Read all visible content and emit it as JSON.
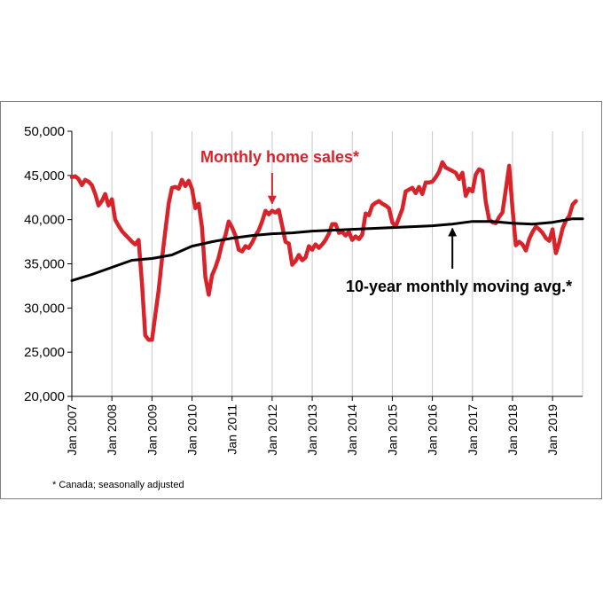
{
  "chart_data": {
    "type": "line",
    "xlabel": "",
    "ylabel": "",
    "ylim": [
      20000,
      50000
    ],
    "y_ticks": [
      20000,
      25000,
      30000,
      35000,
      40000,
      45000,
      50000
    ],
    "y_tick_labels": [
      "20,000",
      "25,000",
      "30,000",
      "35,000",
      "40,000",
      "45,000",
      "50,000"
    ],
    "x_range": [
      "2007-01",
      "2019-10"
    ],
    "x_tick_labels": [
      "Jan 2007",
      "Jan 2008",
      "Jan 2009",
      "Jan 2010",
      "Jan 2011",
      "Jan 2012",
      "Jan 2013",
      "Jan 2014",
      "Jan 2015",
      "Jan 2016",
      "Jan 2017",
      "Jan 2018",
      "Jan 2019"
    ],
    "grid": {
      "vertical": true,
      "horizontal": false
    },
    "series": [
      {
        "key": "sales",
        "color": "#d8232a",
        "points": [
          [
            "2007-01",
            44800
          ],
          [
            "2007-02",
            44900
          ],
          [
            "2007-03",
            44600
          ],
          [
            "2007-04",
            43900
          ],
          [
            "2007-05",
            44500
          ],
          [
            "2007-06",
            44300
          ],
          [
            "2007-07",
            43900
          ],
          [
            "2007-08",
            42900
          ],
          [
            "2007-09",
            41600
          ],
          [
            "2007-10",
            42100
          ],
          [
            "2007-11",
            42900
          ],
          [
            "2007-12",
            41600
          ],
          [
            "2008-01",
            42300
          ],
          [
            "2008-02",
            40000
          ],
          [
            "2008-03",
            39300
          ],
          [
            "2008-04",
            38700
          ],
          [
            "2008-05",
            38300
          ],
          [
            "2008-06",
            37900
          ],
          [
            "2008-07",
            37500
          ],
          [
            "2008-08",
            37200
          ],
          [
            "2008-09",
            37700
          ],
          [
            "2008-10",
            32800
          ],
          [
            "2008-11",
            26900
          ],
          [
            "2008-12",
            26400
          ],
          [
            "2009-01",
            26400
          ],
          [
            "2009-02",
            29200
          ],
          [
            "2009-03",
            32000
          ],
          [
            "2009-04",
            35500
          ],
          [
            "2009-05",
            38700
          ],
          [
            "2009-06",
            41800
          ],
          [
            "2009-07",
            43600
          ],
          [
            "2009-08",
            43700
          ],
          [
            "2009-09",
            43500
          ],
          [
            "2009-10",
            44500
          ],
          [
            "2009-11",
            43800
          ],
          [
            "2009-12",
            44400
          ],
          [
            "2010-01",
            43500
          ],
          [
            "2010-02",
            41300
          ],
          [
            "2010-03",
            41800
          ],
          [
            "2010-04",
            39100
          ],
          [
            "2010-05",
            33500
          ],
          [
            "2010-06",
            31500
          ],
          [
            "2010-07",
            33700
          ],
          [
            "2010-08",
            34600
          ],
          [
            "2010-09",
            35700
          ],
          [
            "2010-10",
            37300
          ],
          [
            "2010-11",
            38200
          ],
          [
            "2010-12",
            39800
          ],
          [
            "2011-01",
            39100
          ],
          [
            "2011-02",
            38200
          ],
          [
            "2011-03",
            36600
          ],
          [
            "2011-04",
            36400
          ],
          [
            "2011-05",
            37000
          ],
          [
            "2011-06",
            36800
          ],
          [
            "2011-07",
            37400
          ],
          [
            "2011-08",
            38200
          ],
          [
            "2011-09",
            38800
          ],
          [
            "2011-10",
            39800
          ],
          [
            "2011-11",
            41000
          ],
          [
            "2011-12",
            40600
          ],
          [
            "2012-01",
            41000
          ],
          [
            "2012-02",
            40800
          ],
          [
            "2012-03",
            41100
          ],
          [
            "2012-04",
            39300
          ],
          [
            "2012-05",
            37500
          ],
          [
            "2012-06",
            37300
          ],
          [
            "2012-07",
            34900
          ],
          [
            "2012-08",
            35300
          ],
          [
            "2012-09",
            36000
          ],
          [
            "2012-10",
            35400
          ],
          [
            "2012-11",
            35700
          ],
          [
            "2012-12",
            37000
          ],
          [
            "2013-01",
            36600
          ],
          [
            "2013-02",
            37200
          ],
          [
            "2013-03",
            36800
          ],
          [
            "2013-04",
            37200
          ],
          [
            "2013-05",
            37700
          ],
          [
            "2013-06",
            38400
          ],
          [
            "2013-07",
            39500
          ],
          [
            "2013-08",
            39500
          ],
          [
            "2013-09",
            38500
          ],
          [
            "2013-10",
            38600
          ],
          [
            "2013-11",
            38200
          ],
          [
            "2013-12",
            38600
          ],
          [
            "2014-01",
            37700
          ],
          [
            "2014-02",
            38100
          ],
          [
            "2014-03",
            37800
          ],
          [
            "2014-04",
            38300
          ],
          [
            "2014-05",
            40700
          ],
          [
            "2014-06",
            40500
          ],
          [
            "2014-07",
            41600
          ],
          [
            "2014-08",
            41900
          ],
          [
            "2014-09",
            42100
          ],
          [
            "2014-10",
            41800
          ],
          [
            "2014-11",
            41600
          ],
          [
            "2014-12",
            41300
          ],
          [
            "2015-01",
            39700
          ],
          [
            "2015-02",
            39200
          ],
          [
            "2015-03",
            40200
          ],
          [
            "2015-04",
            41200
          ],
          [
            "2015-05",
            43200
          ],
          [
            "2015-06",
            43400
          ],
          [
            "2015-07",
            43600
          ],
          [
            "2015-08",
            43000
          ],
          [
            "2015-09",
            43700
          ],
          [
            "2015-10",
            42900
          ],
          [
            "2015-11",
            44200
          ],
          [
            "2015-12",
            44200
          ],
          [
            "2016-01",
            44300
          ],
          [
            "2016-02",
            44800
          ],
          [
            "2016-03",
            45400
          ],
          [
            "2016-04",
            46500
          ],
          [
            "2016-05",
            45900
          ],
          [
            "2016-06",
            45700
          ],
          [
            "2016-07",
            45500
          ],
          [
            "2016-08",
            45300
          ],
          [
            "2016-09",
            44600
          ],
          [
            "2016-10",
            45300
          ],
          [
            "2016-11",
            42700
          ],
          [
            "2016-12",
            43500
          ],
          [
            "2017-01",
            43200
          ],
          [
            "2017-02",
            45100
          ],
          [
            "2017-03",
            45700
          ],
          [
            "2017-04",
            45500
          ],
          [
            "2017-05",
            42000
          ],
          [
            "2017-06",
            40000
          ],
          [
            "2017-07",
            39700
          ],
          [
            "2017-08",
            39600
          ],
          [
            "2017-09",
            40300
          ],
          [
            "2017-10",
            40800
          ],
          [
            "2017-11",
            43400
          ],
          [
            "2017-12",
            46100
          ],
          [
            "2018-01",
            41300
          ],
          [
            "2018-02",
            37100
          ],
          [
            "2018-03",
            37500
          ],
          [
            "2018-04",
            37200
          ],
          [
            "2018-05",
            36500
          ],
          [
            "2018-06",
            37800
          ],
          [
            "2018-07",
            38600
          ],
          [
            "2018-08",
            39200
          ],
          [
            "2018-09",
            38900
          ],
          [
            "2018-10",
            38500
          ],
          [
            "2018-11",
            37900
          ],
          [
            "2018-12",
            37600
          ],
          [
            "2019-01",
            38900
          ],
          [
            "2019-02",
            36200
          ],
          [
            "2019-03",
            37400
          ],
          [
            "2019-04",
            39000
          ],
          [
            "2019-05",
            39900
          ],
          [
            "2019-06",
            40400
          ],
          [
            "2019-07",
            41700
          ],
          [
            "2019-08",
            42100
          ]
        ]
      },
      {
        "key": "avg",
        "color": "#000000",
        "points": [
          [
            "2007-01",
            33100
          ],
          [
            "2007-07",
            33800
          ],
          [
            "2008-01",
            34600
          ],
          [
            "2008-07",
            35400
          ],
          [
            "2009-01",
            35600
          ],
          [
            "2009-07",
            36000
          ],
          [
            "2010-01",
            37000
          ],
          [
            "2010-07",
            37500
          ],
          [
            "2011-01",
            37900
          ],
          [
            "2011-07",
            38200
          ],
          [
            "2012-01",
            38400
          ],
          [
            "2012-07",
            38500
          ],
          [
            "2013-01",
            38700
          ],
          [
            "2013-07",
            38800
          ],
          [
            "2014-01",
            38900
          ],
          [
            "2014-07",
            39000
          ],
          [
            "2015-01",
            39100
          ],
          [
            "2015-07",
            39200
          ],
          [
            "2016-01",
            39300
          ],
          [
            "2016-07",
            39500
          ],
          [
            "2017-01",
            39800
          ],
          [
            "2017-07",
            39800
          ],
          [
            "2018-01",
            39600
          ],
          [
            "2018-07",
            39500
          ],
          [
            "2019-01",
            39700
          ],
          [
            "2019-07",
            40100
          ],
          [
            "2019-10",
            40100
          ]
        ]
      }
    ],
    "annotations": [
      {
        "key": "sales_label",
        "text": "Monthly home sales*",
        "color": "#d8232a",
        "arrow_to": [
          "2012-01",
          41200
        ]
      },
      {
        "key": "avg_label",
        "text": "10-year monthly moving avg.*",
        "color": "#000000",
        "arrow_to": [
          "2016-07",
          39600
        ]
      }
    ]
  },
  "footnote": "* Canada; seasonally adjusted"
}
